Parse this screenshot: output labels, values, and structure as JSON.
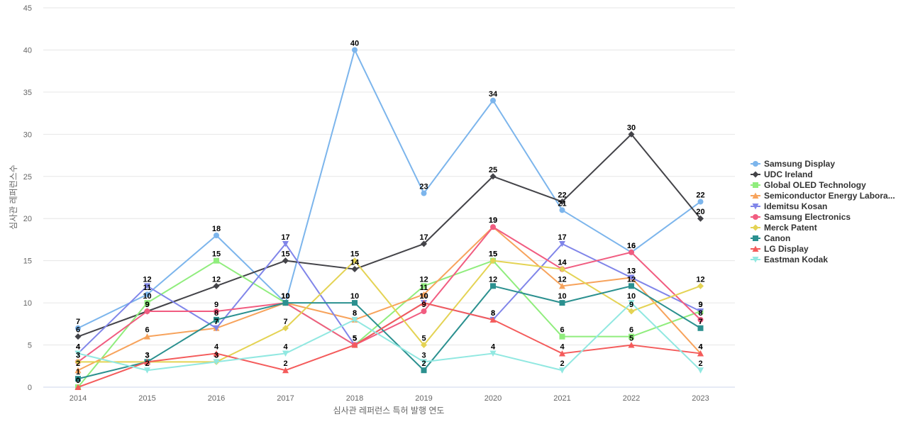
{
  "chart_data": {
    "type": "line",
    "title": "",
    "xlabel": "심사관 레퍼런스 특허 발행 연도",
    "ylabel": "심사관 레퍼런스수",
    "ylim": [
      0,
      45
    ],
    "yticks": [
      0,
      5,
      10,
      15,
      20,
      25,
      30,
      35,
      40,
      45
    ],
    "x": [
      "2014",
      "2015",
      "2016",
      "2017",
      "2018",
      "2019",
      "2020",
      "2021",
      "2022",
      "2023"
    ],
    "grid": true,
    "legend_position": "right",
    "series": [
      {
        "name": "Samsung Display",
        "color": "#7cb5ec",
        "marker": "circle",
        "values": [
          7,
          11,
          18,
          10,
          40,
          23,
          34,
          21,
          16,
          22
        ]
      },
      {
        "name": "UDC Ireland",
        "color": "#434348",
        "marker": "diamond",
        "values": [
          6,
          9,
          12,
          15,
          14,
          17,
          25,
          22,
          30,
          20
        ]
      },
      {
        "name": "Global OLED Technology",
        "color": "#90ed7d",
        "marker": "square",
        "values": [
          0,
          10,
          15,
          10,
          5,
          12,
          15,
          6,
          6,
          9
        ]
      },
      {
        "name": "Semiconductor Energy Labora...",
        "color": "#f7a35c",
        "marker": "triangle",
        "values": [
          2,
          6,
          7,
          10,
          8,
          11,
          19,
          12,
          13,
          4
        ]
      },
      {
        "name": "Idemitsu Kosan",
        "color": "#8085e9",
        "marker": "triangle-down",
        "values": [
          4,
          12,
          7,
          17,
          5,
          10,
          8,
          17,
          13,
          9
        ]
      },
      {
        "name": "Samsung Electronics",
        "color": "#f15c80",
        "marker": "circle",
        "values": [
          3,
          9,
          9,
          10,
          5,
          9,
          19,
          14,
          16,
          8
        ]
      },
      {
        "name": "Merck Patent",
        "color": "#e4d354",
        "marker": "diamond",
        "values": [
          3,
          3,
          3,
          7,
          15,
          5,
          15,
          14,
          9,
          12
        ]
      },
      {
        "name": "Canon",
        "color": "#2b908f",
        "marker": "square",
        "values": [
          1,
          3,
          8,
          10,
          10,
          2,
          12,
          10,
          12,
          7
        ]
      },
      {
        "name": "LG Display",
        "color": "#f45b5b",
        "marker": "triangle",
        "values": [
          0,
          3,
          4,
          2,
          5,
          10,
          8,
          4,
          5,
          4
        ]
      },
      {
        "name": "Eastman Kodak",
        "color": "#91e8e1",
        "marker": "triangle-down",
        "values": [
          4,
          2,
          3,
          4,
          8,
          3,
          4,
          2,
          10,
          2
        ]
      }
    ]
  }
}
